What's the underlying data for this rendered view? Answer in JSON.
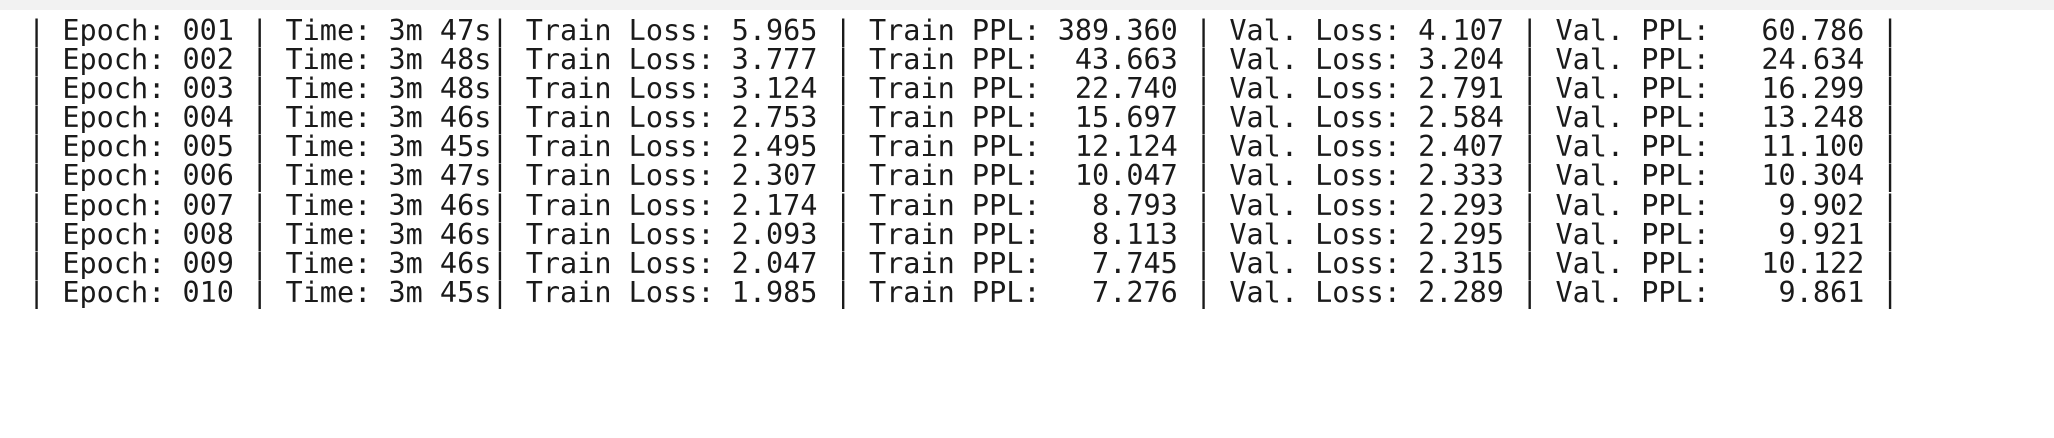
{
  "output": {
    "separator": "|",
    "epoch_label": "Epoch:",
    "time_label": "Time:",
    "train_loss_label": "Train Loss:",
    "train_ppl_label": "Train PPL:",
    "val_loss_label": "Val. Loss:",
    "val_ppl_label": "Val. PPL:",
    "rows": [
      {
        "epoch": "001",
        "time": "3m 47s",
        "train_loss": "5.965",
        "train_ppl": "389.360",
        "val_loss": "4.107",
        "val_ppl": "60.786"
      },
      {
        "epoch": "002",
        "time": "3m 48s",
        "train_loss": "3.777",
        "train_ppl": "43.663",
        "val_loss": "3.204",
        "val_ppl": "24.634"
      },
      {
        "epoch": "003",
        "time": "3m 48s",
        "train_loss": "3.124",
        "train_ppl": "22.740",
        "val_loss": "2.791",
        "val_ppl": "16.299"
      },
      {
        "epoch": "004",
        "time": "3m 46s",
        "train_loss": "2.753",
        "train_ppl": "15.697",
        "val_loss": "2.584",
        "val_ppl": "13.248"
      },
      {
        "epoch": "005",
        "time": "3m 45s",
        "train_loss": "2.495",
        "train_ppl": "12.124",
        "val_loss": "2.407",
        "val_ppl": "11.100"
      },
      {
        "epoch": "006",
        "time": "3m 47s",
        "train_loss": "2.307",
        "train_ppl": "10.047",
        "val_loss": "2.333",
        "val_ppl": "10.304"
      },
      {
        "epoch": "007",
        "time": "3m 46s",
        "train_loss": "2.174",
        "train_ppl": "8.793",
        "val_loss": "2.293",
        "val_ppl": "9.902"
      },
      {
        "epoch": "008",
        "time": "3m 46s",
        "train_loss": "2.093",
        "train_ppl": "8.113",
        "val_loss": "2.295",
        "val_ppl": "9.921"
      },
      {
        "epoch": "009",
        "time": "3m 46s",
        "train_loss": "2.047",
        "train_ppl": "7.745",
        "val_loss": "2.315",
        "val_ppl": "10.122"
      },
      {
        "epoch": "010",
        "time": "3m 45s",
        "train_loss": "1.985",
        "train_ppl": "7.276",
        "val_loss": "2.289",
        "val_ppl": "9.861"
      }
    ]
  }
}
